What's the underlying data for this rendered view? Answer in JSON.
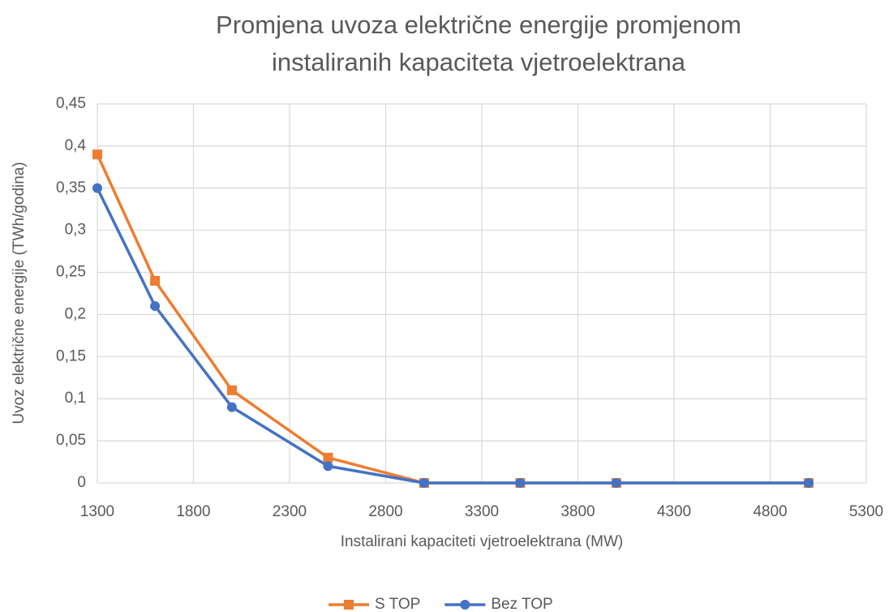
{
  "chart_data": {
    "type": "line",
    "title": "Promjena uvoza električne energije promjenom instaliranih kapaciteta vjetroelektrana",
    "x_label": "Instalirani kapaciteti vjetroelektrana (MW)",
    "y_label": "Uvoz električne energije (TWh/godina)",
    "x": [
      1300,
      1600,
      2000,
      2500,
      3000,
      3500,
      4000,
      5000
    ],
    "series": [
      {
        "name": "S TOP",
        "color": "#ED7D31",
        "marker": "square",
        "values": [
          0.39,
          0.24,
          0.11,
          0.03,
          0,
          0,
          0,
          0
        ]
      },
      {
        "name": "Bez TOP",
        "color": "#4472C4",
        "marker": "circle",
        "values": [
          0.35,
          0.21,
          0.09,
          0.02,
          0,
          0,
          0,
          0
        ]
      }
    ],
    "xlim": [
      1300,
      5300
    ],
    "xticks": [
      1300,
      1800,
      2300,
      2800,
      3300,
      3800,
      4300,
      4800,
      5300
    ],
    "ylim": [
      0,
      0.45
    ],
    "yticks": [
      0,
      {
        "value": 0.05,
        "label": "0,05"
      },
      {
        "value": 0.1,
        "label": "0,1"
      },
      {
        "value": 0.15,
        "label": "0,15"
      },
      {
        "value": 0.2,
        "label": "0,2"
      },
      {
        "value": 0.25,
        "label": "0,25"
      },
      {
        "value": 0.3,
        "label": "0,3"
      },
      {
        "value": 0.35,
        "label": "0,35"
      },
      {
        "value": 0.4,
        "label": "0,4"
      },
      {
        "value": 0.45,
        "label": "0,45"
      }
    ],
    "grid": true,
    "legend": "bottom"
  }
}
